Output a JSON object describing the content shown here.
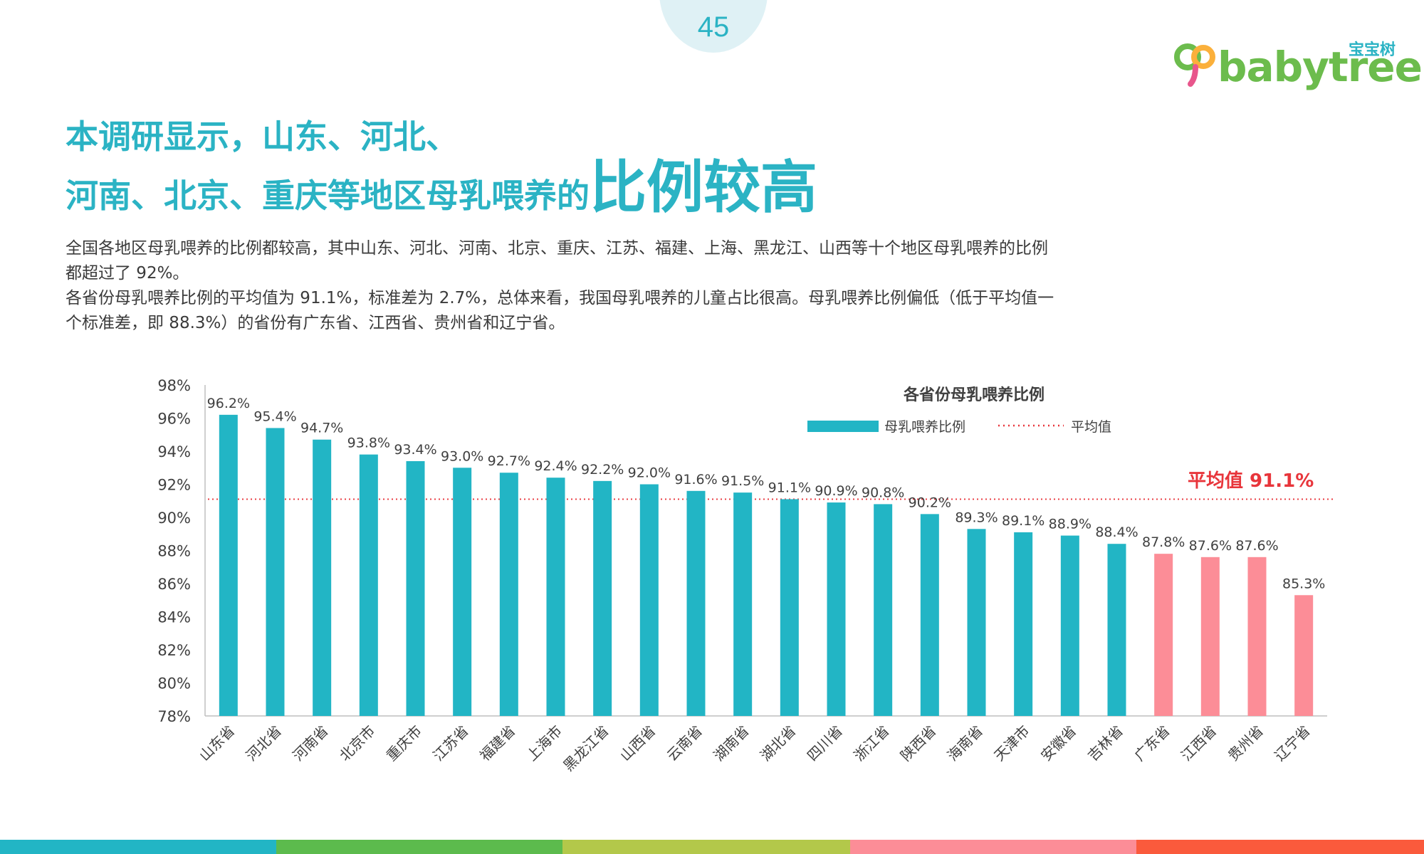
{
  "page_number": "45",
  "logo": {
    "name": "babytree",
    "name_cn": "宝宝树"
  },
  "headline": {
    "line1": "本调研显示，山东、河北、",
    "line2_prefix": "河南、北京、重庆等地区母乳喂养的",
    "line2_emphasis": "比例较高"
  },
  "description": {
    "p1": "全国各地区母乳喂养的比例都较高，其中山东、河北、河南、北京、重庆、江苏、福建、上海、黑龙江、山西等十个地区母乳喂养的比例都超过了 92%。",
    "p2": "各省份母乳喂养比例的平均值为 91.1%，标准差为 2.7%，总体来看，我国母乳喂养的儿童占比很高。母乳喂养比例偏低（低于平均值一个标准差，即 88.3%）的省份有广东省、江西省、贵州省和辽宁省。"
  },
  "colors": {
    "accent": "#2bb3c4",
    "bar_normal": "#22b5c5",
    "bar_low": "#fc8d97",
    "average_line": "#e8353b",
    "footer": [
      "#22b5c5",
      "#5cbb4d",
      "#b3c84a",
      "#fc8d97",
      "#fa5a3c"
    ]
  },
  "chart_data": {
    "type": "bar",
    "title": "各省份母乳喂养比例",
    "legend": {
      "series": "母乳喂养比例",
      "average": "平均值",
      "placement": "top-right"
    },
    "average": 91.1,
    "average_label": "平均值 91.1%",
    "ylim": [
      78,
      98
    ],
    "yticks": [
      "98%",
      "96%",
      "94%",
      "92%",
      "90%",
      "88%",
      "86%",
      "84%",
      "82%",
      "80%",
      "78%"
    ],
    "ytick_values": [
      98,
      96,
      94,
      92,
      90,
      88,
      86,
      84,
      82,
      80,
      78
    ],
    "categories": [
      "山东省",
      "河北省",
      "河南省",
      "北京市",
      "重庆市",
      "江苏省",
      "福建省",
      "上海市",
      "黑龙江省",
      "山西省",
      "云南省",
      "湖南省",
      "湖北省",
      "四川省",
      "浙江省",
      "陕西省",
      "海南省",
      "天津市",
      "安徽省",
      "吉林省",
      "广东省",
      "江西省",
      "贵州省",
      "辽宁省"
    ],
    "values": [
      96.2,
      95.4,
      94.7,
      93.8,
      93.4,
      93.0,
      92.7,
      92.4,
      92.2,
      92.0,
      91.6,
      91.5,
      91.1,
      90.9,
      90.8,
      90.2,
      89.3,
      89.1,
      88.9,
      88.4,
      87.8,
      87.6,
      87.6,
      85.3
    ],
    "value_labels": [
      "96.2%",
      "95.4%",
      "94.7%",
      "93.8%",
      "93.4%",
      "93.0%",
      "92.7%",
      "92.4%",
      "92.2%",
      "92.0%",
      "91.6%",
      "91.5%",
      "91.1%",
      "90.9%",
      "90.8%",
      "90.2%",
      "89.3%",
      "89.1%",
      "88.9%",
      "88.4%",
      "87.8%",
      "87.6%",
      "87.6%",
      "85.3%"
    ],
    "highlighted": [
      "广东省",
      "江西省",
      "贵州省",
      "辽宁省"
    ],
    "grid": false
  }
}
